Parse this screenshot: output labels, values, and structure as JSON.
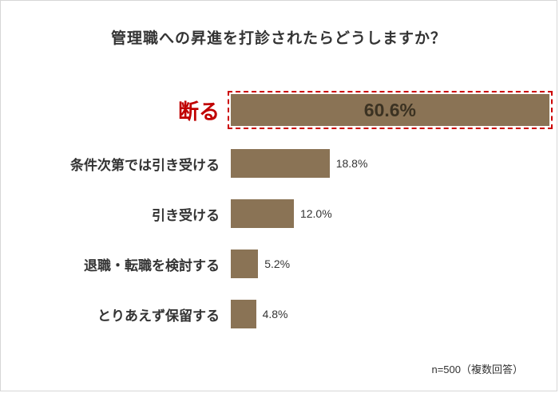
{
  "chart_data": {
    "type": "bar",
    "orientation": "horizontal",
    "title": "管理職への昇進を打診されたらどうしますか？",
    "categories": [
      "断る",
      "条件次第では引き受ける",
      "引き受ける",
      "退職・転職を検討する",
      "とりあえず保留する"
    ],
    "values": [
      60.6,
      18.8,
      12.0,
      5.2,
      4.8
    ],
    "value_labels": [
      "60.6%",
      "18.8%",
      "12.0%",
      "5.2%",
      "4.8%"
    ],
    "xlim": [
      0,
      62
    ],
    "highlight_index": 0,
    "bar_color": "#8a7355",
    "highlight_border_color": "#cc0000",
    "highlight_label_color": "#c00000",
    "grid": false,
    "legend": "none",
    "note": "n=500（複数回答）"
  }
}
